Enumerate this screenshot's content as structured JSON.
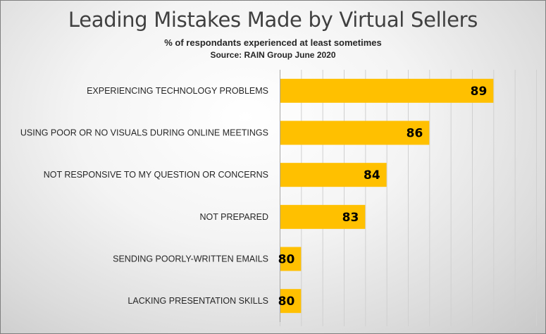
{
  "chart_data": {
    "type": "bar",
    "orientation": "horizontal",
    "title": "Leading Mistakes Made by Virtual Sellers",
    "subtitle": "% of respondants experienced at least sometimes",
    "source": "Source: RAIN Group June 2020",
    "categories": [
      "EXPERIENCING TECHNOLOGY PROBLEMS",
      "USING POOR OR NO VISUALS DURING ONLINE MEETINGS",
      "NOT RESPONSIVE TO MY QUESTION OR CONCERNS",
      "NOT PREPARED",
      "SENDING POORLY-WRITTEN EMAILS",
      "LACKING PRESENTATION SKILLS"
    ],
    "values": [
      89,
      86,
      84,
      83,
      80,
      80
    ],
    "xlim": [
      79,
      91
    ],
    "grid": true,
    "legend": "none",
    "data_labels": true,
    "bar_color": "#FFC000"
  }
}
